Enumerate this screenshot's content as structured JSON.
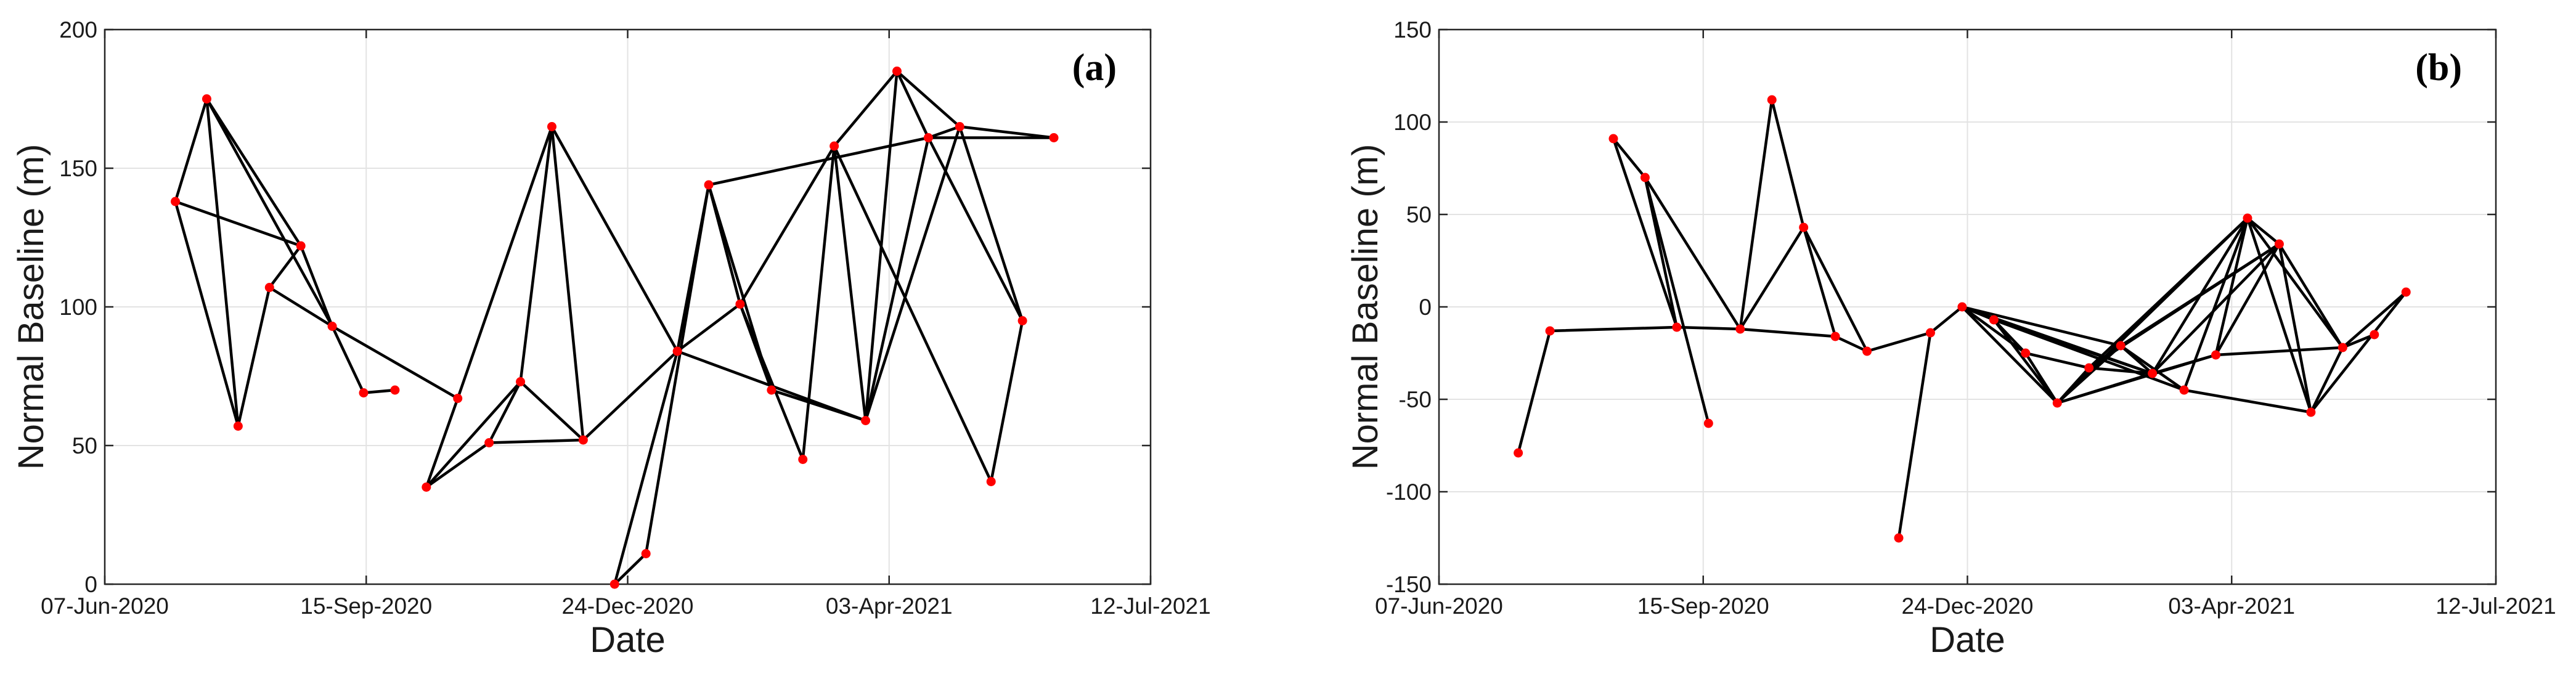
{
  "chart_data": [
    {
      "type": "scatter",
      "panel_label": "(a)",
      "title": "",
      "xlabel": "Date",
      "ylabel": "Normal Baseline (m)",
      "x_ticks": [
        "07-Jun-2020",
        "15-Sep-2020",
        "24-Dec-2020",
        "03-Apr-2021",
        "12-Jul-2021"
      ],
      "x_tick_days": [
        0,
        100,
        200,
        300,
        400
      ],
      "y_ticks": [
        "0",
        "50",
        "100",
        "150",
        "200"
      ],
      "xlim": [
        0,
        400
      ],
      "ylim": [
        0,
        200
      ],
      "grid": true,
      "marker_color": "#ff0000",
      "line_color": "#000000",
      "points": [
        {
          "day": 27,
          "value": 138
        },
        {
          "day": 39,
          "value": 175
        },
        {
          "day": 51,
          "value": 57
        },
        {
          "day": 63,
          "value": 107
        },
        {
          "day": 75,
          "value": 122
        },
        {
          "day": 87,
          "value": 93
        },
        {
          "day": 99,
          "value": 69
        },
        {
          "day": 111,
          "value": 70
        },
        {
          "day": 123,
          "value": 35
        },
        {
          "day": 135,
          "value": 67
        },
        {
          "day": 147,
          "value": 51
        },
        {
          "day": 159,
          "value": 73
        },
        {
          "day": 171,
          "value": 165
        },
        {
          "day": 183,
          "value": 52
        },
        {
          "day": 195,
          "value": 0
        },
        {
          "day": 207,
          "value": 11
        },
        {
          "day": 219,
          "value": 84
        },
        {
          "day": 231,
          "value": 144
        },
        {
          "day": 243,
          "value": 101
        },
        {
          "day": 255,
          "value": 70
        },
        {
          "day": 267,
          "value": 45
        },
        {
          "day": 279,
          "value": 158
        },
        {
          "day": 291,
          "value": 59
        },
        {
          "day": 303,
          "value": 185
        },
        {
          "day": 315,
          "value": 161
        },
        {
          "day": 327,
          "value": 165
        },
        {
          "day": 339,
          "value": 37
        },
        {
          "day": 351,
          "value": 95
        },
        {
          "day": 363,
          "value": 161
        }
      ],
      "connections": [
        [
          0,
          1
        ],
        [
          0,
          2
        ],
        [
          0,
          4
        ],
        [
          1,
          2
        ],
        [
          1,
          4
        ],
        [
          1,
          5
        ],
        [
          3,
          4
        ],
        [
          2,
          3
        ],
        [
          3,
          5
        ],
        [
          4,
          5
        ],
        [
          5,
          6
        ],
        [
          5,
          9
        ],
        [
          6,
          7
        ],
        [
          8,
          9
        ],
        [
          9,
          12
        ],
        [
          8,
          10
        ],
        [
          8,
          11
        ],
        [
          10,
          11
        ],
        [
          11,
          12
        ],
        [
          10,
          13
        ],
        [
          11,
          13
        ],
        [
          12,
          13
        ],
        [
          12,
          16
        ],
        [
          13,
          16
        ],
        [
          14,
          15
        ],
        [
          14,
          16
        ],
        [
          15,
          17
        ],
        [
          16,
          17
        ],
        [
          16,
          22
        ],
        [
          16,
          18
        ],
        [
          17,
          18
        ],
        [
          17,
          24
        ],
        [
          17,
          19
        ],
        [
          18,
          19
        ],
        [
          18,
          20
        ],
        [
          18,
          21
        ],
        [
          19,
          22
        ],
        [
          20,
          21
        ],
        [
          21,
          22
        ],
        [
          21,
          23
        ],
        [
          21,
          26
        ],
        [
          22,
          23
        ],
        [
          22,
          24
        ],
        [
          22,
          25
        ],
        [
          23,
          24
        ],
        [
          23,
          25
        ],
        [
          24,
          25
        ],
        [
          24,
          28
        ],
        [
          24,
          27
        ],
        [
          25,
          28
        ],
        [
          25,
          27
        ],
        [
          26,
          27
        ]
      ]
    },
    {
      "type": "scatter",
      "panel_label": "(b)",
      "title": "",
      "xlabel": "Date",
      "ylabel": "Normal Baseline (m)",
      "x_ticks": [
        "07-Jun-2020",
        "15-Sep-2020",
        "24-Dec-2020",
        "03-Apr-2021",
        "12-Jul-2021"
      ],
      "x_tick_days": [
        0,
        100,
        200,
        300,
        400
      ],
      "y_ticks": [
        "-150",
        "-100",
        "-50",
        "0",
        "50",
        "100",
        "150"
      ],
      "xlim": [
        0,
        400
      ],
      "ylim": [
        -150,
        150
      ],
      "grid": true,
      "marker_color": "#ff0000",
      "line_color": "#000000",
      "points": [
        {
          "day": 30,
          "value": -79
        },
        {
          "day": 42,
          "value": -13
        },
        {
          "day": 66,
          "value": 91
        },
        {
          "day": 78,
          "value": 70
        },
        {
          "day": 90,
          "value": -11
        },
        {
          "day": 102,
          "value": -63
        },
        {
          "day": 114,
          "value": -12
        },
        {
          "day": 126,
          "value": 112
        },
        {
          "day": 138,
          "value": 43
        },
        {
          "day": 150,
          "value": -16
        },
        {
          "day": 162,
          "value": -24
        },
        {
          "day": 174,
          "value": -125
        },
        {
          "day": 186,
          "value": -14
        },
        {
          "day": 198,
          "value": 0
        },
        {
          "day": 210,
          "value": -7
        },
        {
          "day": 222,
          "value": -25
        },
        {
          "day": 234,
          "value": -52
        },
        {
          "day": 246,
          "value": -33
        },
        {
          "day": 258,
          "value": -21
        },
        {
          "day": 270,
          "value": -36
        },
        {
          "day": 282,
          "value": -45
        },
        {
          "day": 294,
          "value": -26
        },
        {
          "day": 306,
          "value": 48
        },
        {
          "day": 318,
          "value": 34
        },
        {
          "day": 330,
          "value": -57
        },
        {
          "day": 342,
          "value": -22
        },
        {
          "day": 354,
          "value": -15
        },
        {
          "day": 366,
          "value": 8
        }
      ],
      "connections": [
        [
          0,
          1
        ],
        [
          1,
          4
        ],
        [
          2,
          3
        ],
        [
          2,
          4
        ],
        [
          3,
          4
        ],
        [
          3,
          5
        ],
        [
          3,
          6
        ],
        [
          4,
          6
        ],
        [
          6,
          7
        ],
        [
          6,
          8
        ],
        [
          6,
          9
        ],
        [
          7,
          8
        ],
        [
          8,
          9
        ],
        [
          8,
          10
        ],
        [
          9,
          10
        ],
        [
          10,
          12
        ],
        [
          11,
          12
        ],
        [
          12,
          13
        ],
        [
          13,
          14
        ],
        [
          13,
          15
        ],
        [
          13,
          16
        ],
        [
          13,
          18
        ],
        [
          13,
          19
        ],
        [
          14,
          15
        ],
        [
          14,
          16
        ],
        [
          14,
          19
        ],
        [
          14,
          20
        ],
        [
          15,
          16
        ],
        [
          15,
          17
        ],
        [
          16,
          17
        ],
        [
          16,
          18
        ],
        [
          16,
          19
        ],
        [
          16,
          21
        ],
        [
          16,
          22
        ],
        [
          17,
          18
        ],
        [
          17,
          19
        ],
        [
          17,
          22
        ],
        [
          17,
          23
        ],
        [
          18,
          19
        ],
        [
          18,
          20
        ],
        [
          18,
          23
        ],
        [
          19,
          21
        ],
        [
          19,
          22
        ],
        [
          19,
          23
        ],
        [
          20,
          22
        ],
        [
          20,
          24
        ],
        [
          21,
          22
        ],
        [
          21,
          23
        ],
        [
          21,
          25
        ],
        [
          22,
          23
        ],
        [
          22,
          24
        ],
        [
          22,
          25
        ],
        [
          23,
          24
        ],
        [
          23,
          25
        ],
        [
          24,
          25
        ],
        [
          25,
          26
        ],
        [
          25,
          27
        ],
        [
          24,
          27
        ]
      ]
    }
  ]
}
